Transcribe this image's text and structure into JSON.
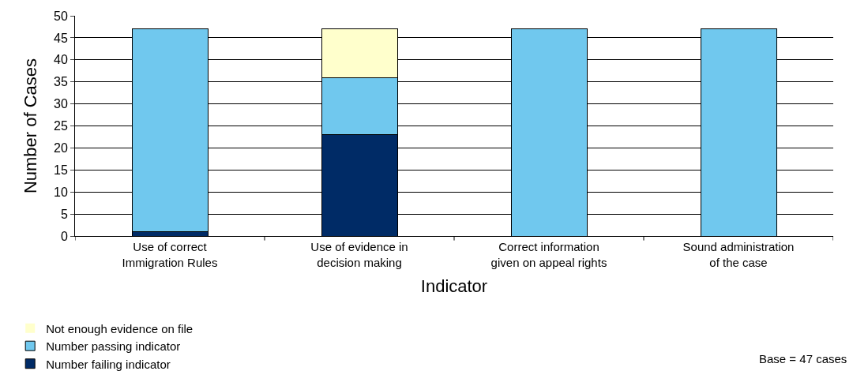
{
  "chart_data": {
    "type": "bar",
    "stacked": true,
    "xlabel": "Indicator",
    "ylabel": "Number of Cases",
    "categories": [
      "Use of correct Immigration Rules",
      "Use of evidence in decision making",
      "Correct information given on appeal rights",
      "Sound administration of the case"
    ],
    "series": [
      {
        "name": "Number failing indicator",
        "color": "#002b66",
        "values": [
          1,
          23,
          0,
          0
        ]
      },
      {
        "name": "Number passing indicator",
        "color": "#70c8ee",
        "values": [
          46,
          13,
          47,
          47
        ]
      },
      {
        "name": "Not enough evidence on file",
        "color": "#ffffcc",
        "values": [
          0,
          11,
          0,
          0
        ]
      }
    ],
    "ylim": [
      0,
      50
    ],
    "yticks": [
      0,
      5,
      10,
      15,
      20,
      25,
      30,
      35,
      40,
      45,
      50
    ],
    "grid": "y",
    "legend": "bottom left",
    "annotations": [
      "Base = 47 cases"
    ]
  }
}
